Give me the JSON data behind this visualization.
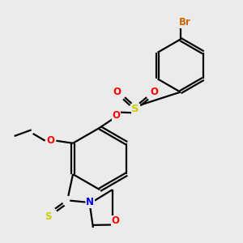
{
  "background_color": "#ebebeb",
  "atom_colors": {
    "O": "#ff0000",
    "N": "#0000ff",
    "S": "#cccc00",
    "Br": "#cc6600"
  },
  "bond_color": "#000000",
  "line_width": 1.6,
  "font_size": 8.5,
  "fig_size": [
    3.0,
    3.0
  ],
  "dpi": 100
}
